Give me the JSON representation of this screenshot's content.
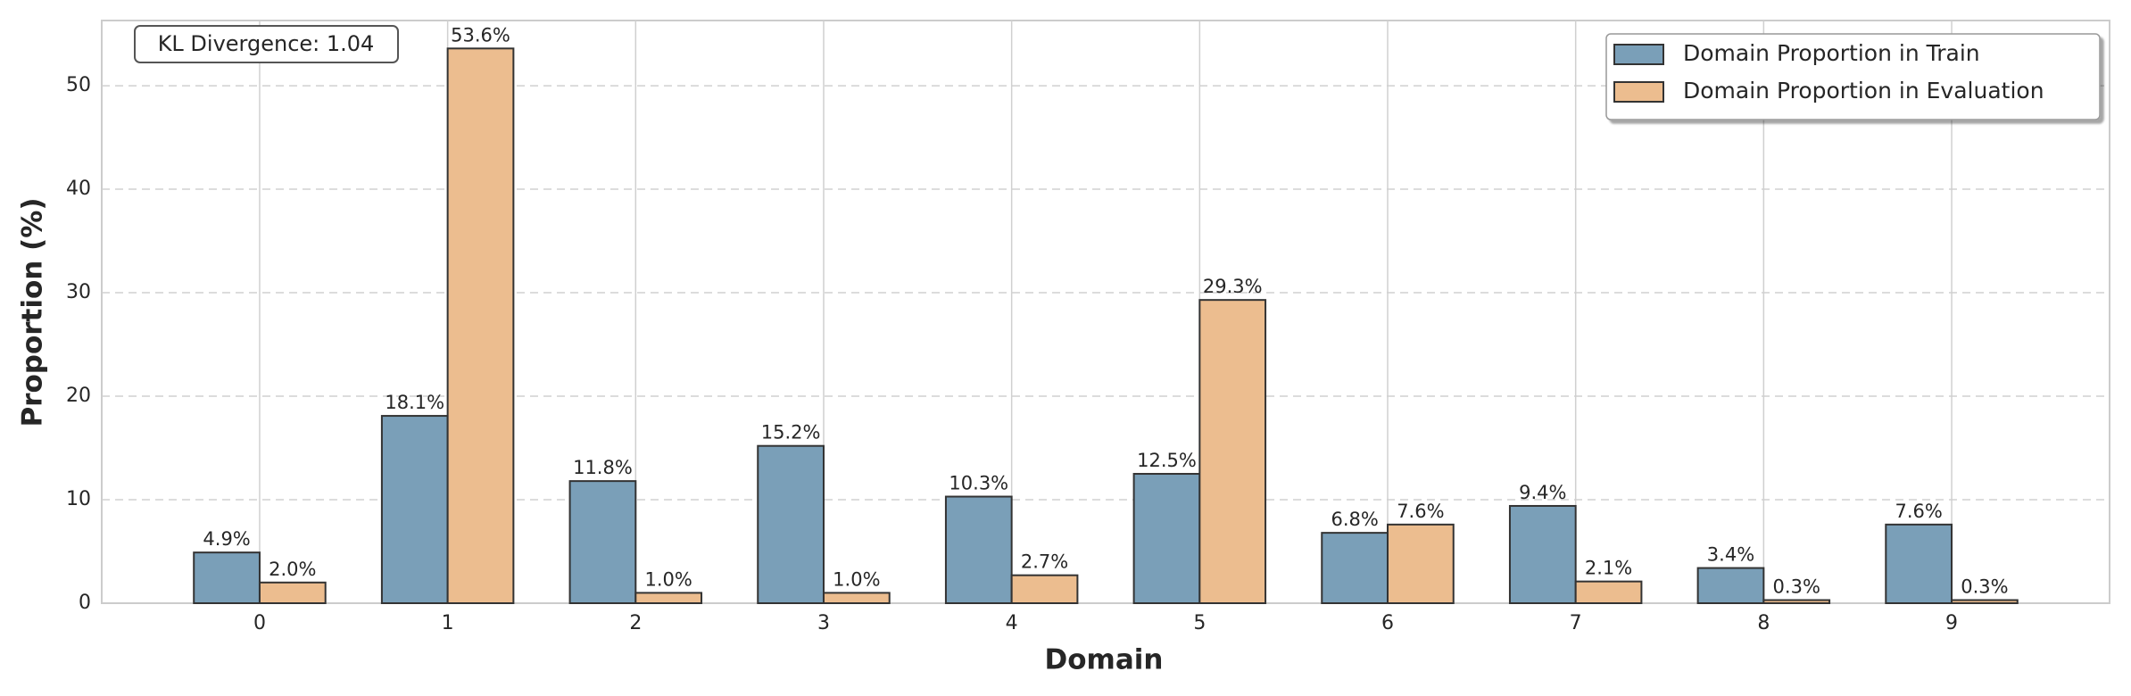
{
  "chart_data": {
    "type": "bar",
    "xlabel": "Domain",
    "ylabel": "Proportion (%)",
    "annotation": "KL Divergence: 1.04",
    "categories": [
      "0",
      "1",
      "2",
      "3",
      "4",
      "5",
      "6",
      "7",
      "8",
      "9"
    ],
    "series": [
      {
        "name": "Domain Proportion in Train",
        "color": "#7a9fb8",
        "values": [
          4.9,
          18.1,
          11.8,
          15.2,
          10.3,
          12.5,
          6.8,
          9.4,
          3.4,
          7.6
        ],
        "value_labels": [
          "4.9%",
          "18.1%",
          "11.8%",
          "15.2%",
          "10.3%",
          "12.5%",
          "6.8%",
          "9.4%",
          "3.4%",
          "7.6%"
        ]
      },
      {
        "name": "Domain Proportion in Evaluation",
        "color": "#ecbd8f",
        "values": [
          2.0,
          53.6,
          1.0,
          1.0,
          2.7,
          29.3,
          7.6,
          2.1,
          0.3,
          0.3
        ],
        "value_labels": [
          "2.0%",
          "53.6%",
          "1.0%",
          "1.0%",
          "2.7%",
          "29.3%",
          "7.6%",
          "2.1%",
          "0.3%",
          "0.3%"
        ]
      }
    ],
    "ylim": [
      0,
      56.3
    ],
    "yticks": [
      0,
      10,
      20,
      30,
      40,
      50
    ],
    "grid": true,
    "legend": "upper right"
  }
}
